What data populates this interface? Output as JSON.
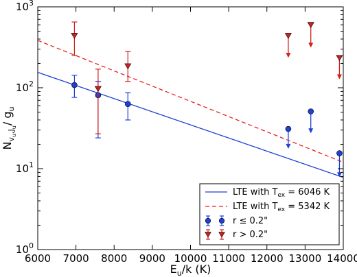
{
  "chart_data": {
    "type": "scatter",
    "xlabel": "E_u/k (K)",
    "ylabel": "N_{v_u,J_u} / g_u",
    "xlim": [
      6000,
      14000
    ],
    "ylim": [
      1,
      1000
    ],
    "yscale": "log",
    "grid": false,
    "legend_position": "lower-right",
    "x_ticks": [
      "6000",
      "7000",
      "8000",
      "9000",
      "10000",
      "11000",
      "12000",
      "13000",
      "14000"
    ],
    "y_ticks": [
      {
        "value": 1,
        "base": "10",
        "exp": "0"
      },
      {
        "value": 10,
        "base": "10",
        "exp": "1"
      },
      {
        "value": 100,
        "base": "10",
        "exp": "2"
      },
      {
        "value": 1000,
        "base": "10",
        "exp": "3"
      }
    ],
    "series": [
      {
        "name": "LTE with T_ex = 6046 K",
        "kind": "line",
        "color": "#1f3fd6",
        "dash": "solid",
        "x": [
          6000,
          14000
        ],
        "y": [
          155,
          7.8
        ]
      },
      {
        "name": "LTE with T_ex = 5342 K",
        "kind": "line",
        "color": "#e8211f",
        "dash": "dashed",
        "x": [
          6000,
          14000
        ],
        "y": [
          385,
          12
        ]
      },
      {
        "name": "r ≤ 0.2\"",
        "kind": "points",
        "marker": "circle",
        "color": "#1f3fd6",
        "points": [
          {
            "x": 6960,
            "y": 108,
            "lo": 76,
            "hi": 143
          },
          {
            "x": 7580,
            "y": 81,
            "lo": 24,
            "hi": 120
          },
          {
            "x": 8360,
            "y": 63,
            "lo": 40,
            "hi": 87
          },
          {
            "x": 12560,
            "y": 31,
            "upper_limit": true,
            "arrow_to": 18
          },
          {
            "x": 13150,
            "y": 51,
            "upper_limit": true,
            "arrow_to": 28
          },
          {
            "x": 13900,
            "y": 15.5,
            "upper_limit": true,
            "arrow_to": 8
          }
        ]
      },
      {
        "name": "r > 0.2\"",
        "kind": "points",
        "marker": "triangle-down",
        "color": "#d11f1f",
        "points": [
          {
            "x": 6960,
            "y": 440,
            "lo": 250,
            "hi": 650
          },
          {
            "x": 7580,
            "y": 97,
            "lo": 27,
            "hi": 170
          },
          {
            "x": 8360,
            "y": 185,
            "lo": 120,
            "hi": 280
          },
          {
            "x": 12560,
            "y": 440,
            "upper_limit": true,
            "arrow_to": 240
          },
          {
            "x": 13150,
            "y": 600,
            "upper_limit": true,
            "arrow_to": 320
          },
          {
            "x": 13900,
            "y": 235,
            "upper_limit": true,
            "arrow_to": 130
          }
        ]
      }
    ],
    "legend": [
      {
        "text_pre": "LTE with T",
        "sub": "ex",
        "text_post": " = 6046 K"
      },
      {
        "text_pre": "LTE with T",
        "sub": "ex",
        "text_post": " = 5342 K"
      },
      {
        "text_pre": "r ≤ 0.2\"",
        "sub": "",
        "text_post": ""
      },
      {
        "text_pre": "r > 0.2\"",
        "sub": "",
        "text_post": ""
      }
    ],
    "axis_text": {
      "x_main": "E",
      "x_sub": "u",
      "x_rest": "/k (K)",
      "y_main": "N",
      "y_sub1": "v",
      "y_sub2": "u",
      "y_sub_mid": ",J",
      "y_sub3": "u",
      "y_rest": "/ g",
      "y_rest_sub": "u"
    }
  }
}
